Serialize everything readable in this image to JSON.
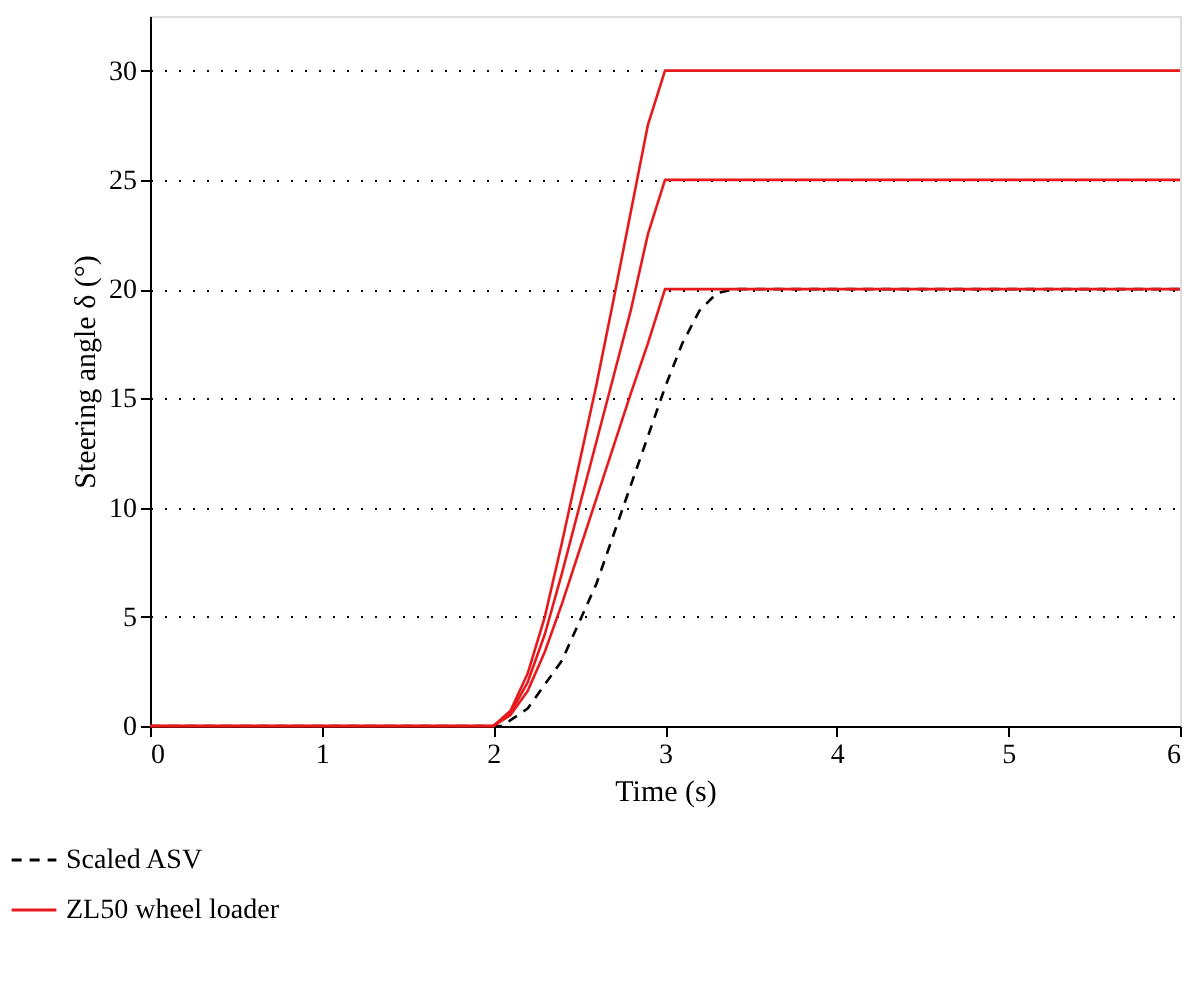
{
  "chart_data": {
    "type": "line",
    "xlabel": "Time (s)",
    "ylabel": "Steering angle δ (°)",
    "xlim": [
      0,
      6
    ],
    "xticks": [
      0,
      1,
      2,
      3,
      4,
      5,
      6
    ],
    "ylim": [
      0,
      32.5
    ],
    "yticks": [
      0,
      5,
      10,
      15,
      20,
      25,
      30
    ],
    "grid": "y",
    "legend": "bottom",
    "marker": "none",
    "series": [
      {
        "name": "Scaled ASV",
        "color": "#000000",
        "line_style": "dashed",
        "x": [
          0,
          2,
          2.05,
          2.2,
          2.4,
          2.6,
          2.8,
          3.0,
          3.1,
          3.2,
          3.3,
          3.4,
          6
        ],
        "values": [
          0,
          0,
          0,
          0.8,
          3,
          6.5,
          11,
          15.5,
          17.5,
          19,
          19.8,
          20,
          20
        ]
      },
      {
        "name": "ZL50 wheel loader",
        "color": "#e8191d",
        "line_style": "solid",
        "x": [
          0,
          2,
          2.1,
          2.2,
          2.3,
          2.4,
          2.5,
          2.6,
          2.7,
          2.8,
          2.9,
          3.0,
          6
        ],
        "values": [
          0,
          0,
          0.5,
          1.6,
          3.4,
          5.6,
          8,
          10.4,
          12.8,
          15.2,
          17.5,
          20,
          20
        ]
      },
      {
        "color": "#e8191d",
        "line_style": "solid",
        "x": [
          0,
          2,
          2.1,
          2.2,
          2.3,
          2.4,
          2.5,
          2.6,
          2.7,
          2.8,
          2.9,
          3.0,
          6
        ],
        "values": [
          0,
          0,
          0.6,
          2,
          4.2,
          7,
          10,
          13,
          16,
          19,
          22.5,
          25,
          25
        ]
      },
      {
        "color": "#e8191d",
        "line_style": "solid",
        "x": [
          0,
          2,
          2.1,
          2.2,
          2.3,
          2.4,
          2.5,
          2.6,
          2.7,
          2.8,
          2.9,
          3.0,
          6
        ],
        "values": [
          0,
          0,
          0.7,
          2.4,
          5,
          8.4,
          12,
          15.6,
          19.5,
          23.5,
          27.5,
          30,
          30
        ]
      }
    ]
  }
}
